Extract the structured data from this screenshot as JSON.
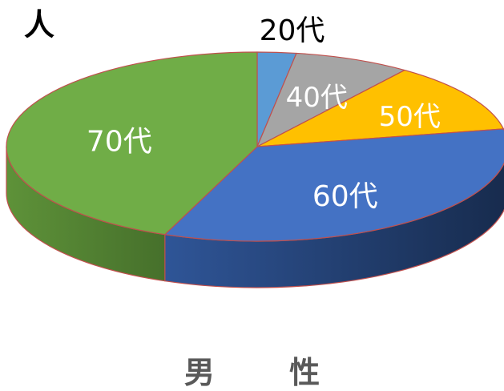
{
  "unit_label": "人",
  "title": "男 性",
  "colors": {
    "20代": "#5B9BD5",
    "40代": "#A5A5A5",
    "50代": "#FFC000",
    "60代": "#4472C4",
    "70代": "#70AD47",
    "slice_border": "#C0504D"
  },
  "chart_data": {
    "type": "pie",
    "title": "男 性",
    "unit": "人",
    "style": "3d",
    "categories": [
      "20代",
      "40代",
      "50代",
      "60代",
      "70代"
    ],
    "values": [
      2.5,
      7.5,
      12,
      34,
      44
    ],
    "labels": [
      {
        "text": "20代",
        "color": "#000000",
        "position": "outside"
      },
      {
        "text": "40代",
        "color": "#FFFFFF",
        "position": "inside"
      },
      {
        "text": "50代",
        "color": "#FFFFFF",
        "position": "inside"
      },
      {
        "text": "60代",
        "color": "#FFFFFF",
        "position": "inside"
      },
      {
        "text": "70代",
        "color": "#FFFFFF",
        "position": "inside"
      }
    ]
  }
}
